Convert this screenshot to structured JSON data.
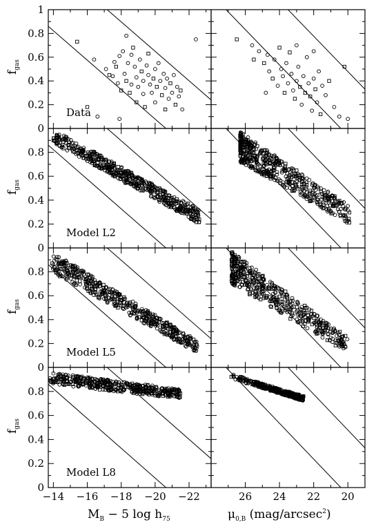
{
  "chart_data": {
    "type": "scatter",
    "layout_rows": 4,
    "layout_cols": 2,
    "x_axes": [
      {
        "label": "M",
        "label_sub_1": "B",
        "label_rest": " − 5 log h",
        "label_sub_2": "75",
        "xlim": [
          -13.7,
          -23.3
        ],
        "ticks": [
          -14,
          -16,
          -18,
          -20,
          -22
        ],
        "tick_labels": [
          "−14",
          "−16",
          "−18",
          "−20",
          "−22"
        ]
      },
      {
        "label": "μ",
        "label_sub_1": "0,B",
        "label_rest": " (mag/arcsec",
        "label_sup": "2",
        "label_close": ")",
        "xlim": [
          28.0,
          19.0
        ],
        "ticks": [
          26,
          24,
          22,
          20
        ],
        "tick_labels": [
          "26",
          "24",
          "22",
          "20"
        ]
      }
    ],
    "y_axis": {
      "label": "f",
      "label_sub": "gas",
      "ylim": [
        0,
        1
      ],
      "ticks": [
        0,
        0.2,
        0.4,
        0.6,
        0.8,
        1
      ],
      "row_tick_labels": [
        [
          "0",
          "0.2",
          "0.4",
          "0.6",
          "0.8",
          "1"
        ],
        [
          "0",
          "0.2",
          "0.4",
          "0.6",
          "0.8",
          ""
        ],
        [
          "0",
          "0.2",
          "0.4",
          "0.6",
          "0.8",
          ""
        ],
        [
          "0",
          "0.2",
          "0.4",
          "0.6",
          "0.8",
          ""
        ]
      ]
    },
    "row_labels": [
      "Data",
      "Model L2",
      "Model L5",
      "Model L8"
    ],
    "reference_lines": [
      [
        {
          "x": [
            -13.7,
            -23.3
          ],
          "y": [
            0.86,
            -0.33
          ]
        },
        {
          "x": [
            -13.7,
            -23.3
          ],
          "y": [
            1.43,
            0.24
          ]
        }
      ],
      [
        {
          "x": [
            28.0,
            19.0
          ],
          "y": [
            1.13,
            -0.21
          ]
        },
        {
          "x": [
            28.0,
            19.0
          ],
          "y": [
            1.67,
            0.33
          ]
        }
      ]
    ],
    "panels": [
      {
        "row": 0,
        "col": 0,
        "markers": "mixed",
        "points": [
          [
            -15.4,
            0.73
          ],
          [
            -16.4,
            0.58
          ],
          [
            -17.1,
            0.5
          ],
          [
            -17.3,
            0.45
          ],
          [
            -17.5,
            0.44
          ],
          [
            -17.6,
            0.56
          ],
          [
            -17.7,
            0.52
          ],
          [
            -17.8,
            0.38
          ],
          [
            -17.9,
            0.61
          ],
          [
            -18.0,
            0.32
          ],
          [
            -18.1,
            0.65
          ],
          [
            -18.2,
            0.46
          ],
          [
            -18.3,
            0.4
          ],
          [
            -18.3,
            0.78
          ],
          [
            -18.4,
            0.55
          ],
          [
            -18.5,
            0.3
          ],
          [
            -18.6,
            0.62
          ],
          [
            -18.6,
            0.37
          ],
          [
            -18.7,
            0.68
          ],
          [
            -18.8,
            0.52
          ],
          [
            -18.9,
            0.43
          ],
          [
            -18.9,
            0.22
          ],
          [
            -19.0,
            0.35
          ],
          [
            -19.1,
            0.58
          ],
          [
            -19.2,
            0.48
          ],
          [
            -19.3,
            0.4
          ],
          [
            -19.3,
            0.29
          ],
          [
            -19.4,
            0.18
          ],
          [
            -19.5,
            0.53
          ],
          [
            -19.6,
            0.45
          ],
          [
            -19.6,
            0.63
          ],
          [
            -19.7,
            0.37
          ],
          [
            -19.8,
            0.3
          ],
          [
            -19.9,
            0.42
          ],
          [
            -20.0,
            0.5
          ],
          [
            -20.0,
            0.22
          ],
          [
            -20.1,
            0.35
          ],
          [
            -20.2,
            0.55
          ],
          [
            -20.3,
            0.4
          ],
          [
            -20.4,
            0.28
          ],
          [
            -20.5,
            0.46
          ],
          [
            -20.6,
            0.34
          ],
          [
            -20.6,
            0.16
          ],
          [
            -20.7,
            0.42
          ],
          [
            -20.8,
            0.25
          ],
          [
            -20.9,
            0.38
          ],
          [
            -21.0,
            0.3
          ],
          [
            -21.1,
            0.45
          ],
          [
            -21.2,
            0.2
          ],
          [
            -21.3,
            0.35
          ],
          [
            -21.4,
            0.27
          ],
          [
            -21.5,
            0.32
          ],
          [
            -21.6,
            0.16
          ],
          [
            -22.4,
            0.75
          ],
          [
            -16.0,
            0.18
          ],
          [
            -16.6,
            0.1
          ],
          [
            -17.9,
            0.08
          ]
        ]
      },
      {
        "row": 0,
        "col": 1,
        "markers": "mixed",
        "points": [
          [
            26.5,
            0.75
          ],
          [
            25.6,
            0.7
          ],
          [
            25.2,
            0.65
          ],
          [
            24.9,
            0.55
          ],
          [
            24.7,
            0.62
          ],
          [
            24.6,
            0.48
          ],
          [
            24.4,
            0.42
          ],
          [
            24.3,
            0.58
          ],
          [
            24.1,
            0.36
          ],
          [
            24.0,
            0.68
          ],
          [
            23.9,
            0.5
          ],
          [
            23.8,
            0.44
          ],
          [
            23.7,
            0.3
          ],
          [
            23.6,
            0.55
          ],
          [
            23.5,
            0.38
          ],
          [
            23.4,
            0.64
          ],
          [
            23.3,
            0.46
          ],
          [
            23.2,
            0.32
          ],
          [
            23.1,
            0.25
          ],
          [
            23.0,
            0.4
          ],
          [
            22.9,
            0.52
          ],
          [
            22.8,
            0.35
          ],
          [
            22.7,
            0.2
          ],
          [
            22.6,
            0.44
          ],
          [
            22.5,
            0.3
          ],
          [
            22.4,
            0.6
          ],
          [
            22.3,
            0.38
          ],
          [
            22.2,
            0.27
          ],
          [
            22.1,
            0.15
          ],
          [
            22.0,
            0.42
          ],
          [
            21.9,
            0.33
          ],
          [
            21.8,
            0.22
          ],
          [
            21.7,
            0.48
          ],
          [
            21.6,
            0.12
          ],
          [
            21.5,
            0.36
          ],
          [
            21.3,
            0.28
          ],
          [
            21.1,
            0.4
          ],
          [
            20.8,
            0.18
          ],
          [
            20.5,
            0.1
          ],
          [
            20.2,
            0.52
          ],
          [
            20.0,
            0.08
          ],
          [
            24.8,
            0.3
          ],
          [
            25.5,
            0.58
          ],
          [
            23.0,
            0.7
          ],
          [
            22.0,
            0.65
          ]
        ]
      },
      {
        "row": 1,
        "col": 0,
        "markers": "mixed",
        "generator": {
          "axis": 0,
          "seed": 11,
          "n": 520,
          "x0": -14.0,
          "x1": -22.6,
          "ytop0": 0.99,
          "ytop1": 0.32,
          "ybot0": 0.88,
          "ybot1": 0.2,
          "xs": 1.0
        }
      },
      {
        "row": 1,
        "col": 1,
        "markers": "mixed",
        "generator": {
          "axis": 1,
          "seed": 23,
          "n": 520,
          "x0": 26.3,
          "x1": 19.9,
          "ytop0": 0.97,
          "ytop1": 0.35,
          "ybot0": 0.72,
          "ybot1": 0.2,
          "xs": 1.7
        }
      },
      {
        "row": 2,
        "col": 0,
        "markers": "mixed",
        "generator": {
          "axis": 0,
          "seed": 37,
          "n": 480,
          "x0": -13.9,
          "x1": -22.5,
          "ytop0": 0.97,
          "ytop1": 0.22,
          "ybot0": 0.8,
          "ybot1": 0.12,
          "xs": 1.0
        }
      },
      {
        "row": 2,
        "col": 1,
        "markers": "mixed",
        "generator": {
          "axis": 1,
          "seed": 49,
          "n": 480,
          "x0": 26.8,
          "x1": 20.0,
          "ytop0": 0.97,
          "ytop1": 0.25,
          "ybot0": 0.7,
          "ybot1": 0.12,
          "xs": 1.7
        }
      },
      {
        "row": 3,
        "col": 0,
        "markers": "mixed",
        "generator": {
          "axis": 0,
          "seed": 61,
          "n": 420,
          "x0": -13.8,
          "x1": -21.5,
          "ytop0": 0.96,
          "ytop1": 0.82,
          "ybot0": 0.86,
          "ybot1": 0.74,
          "xs": 1.0
        }
      },
      {
        "row": 3,
        "col": 1,
        "markers": "mixed",
        "generator": {
          "axis": 1,
          "seed": 73,
          "n": 360,
          "x0": 26.9,
          "x1": 22.6,
          "ytop0": 0.95,
          "ytop1": 0.76,
          "ybot0": 0.91,
          "ybot1": 0.72,
          "xs": 0.6
        }
      }
    ]
  }
}
